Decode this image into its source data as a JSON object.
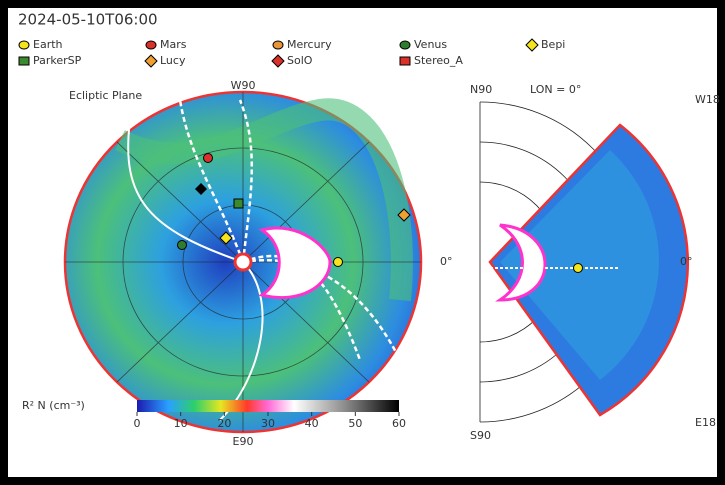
{
  "header": {
    "timestamp": "2024-05-10T06:00"
  },
  "legend": [
    {
      "label": "Earth",
      "color": "#f5e31b",
      "shape": "circle"
    },
    {
      "label": "Mars",
      "color": "#d8322b",
      "shape": "circle"
    },
    {
      "label": "Mercury",
      "color": "#e9963a",
      "shape": "circle"
    },
    {
      "label": "Venus",
      "color": "#2f7d2f",
      "shape": "circle"
    },
    {
      "label": "Bepi",
      "color": "#f5e31b",
      "shape": "diamond"
    },
    {
      "label": "ParkerSP",
      "color": "#3b8a2e",
      "shape": "square"
    },
    {
      "label": "Lucy",
      "color": "#f0a030",
      "shape": "diamond"
    },
    {
      "label": "SolO",
      "color": "#d8322b",
      "shape": "diamond"
    },
    {
      "label": "Stereo_A",
      "color": "#d8322b",
      "shape": "square"
    }
  ],
  "ecliptic": {
    "title": "Ecliptic Plane",
    "top": "W90",
    "right": "0°",
    "bottom": "E90"
  },
  "meridional": {
    "top": "N90",
    "title": "LON = 0°",
    "bottom": "S90",
    "right": "0°",
    "right_top": "W18",
    "right_bottom": "E18"
  },
  "colorbar": {
    "label": "R² N (cm⁻³)",
    "ticks": [
      0,
      10,
      20,
      30,
      40,
      50,
      60
    ]
  }
}
